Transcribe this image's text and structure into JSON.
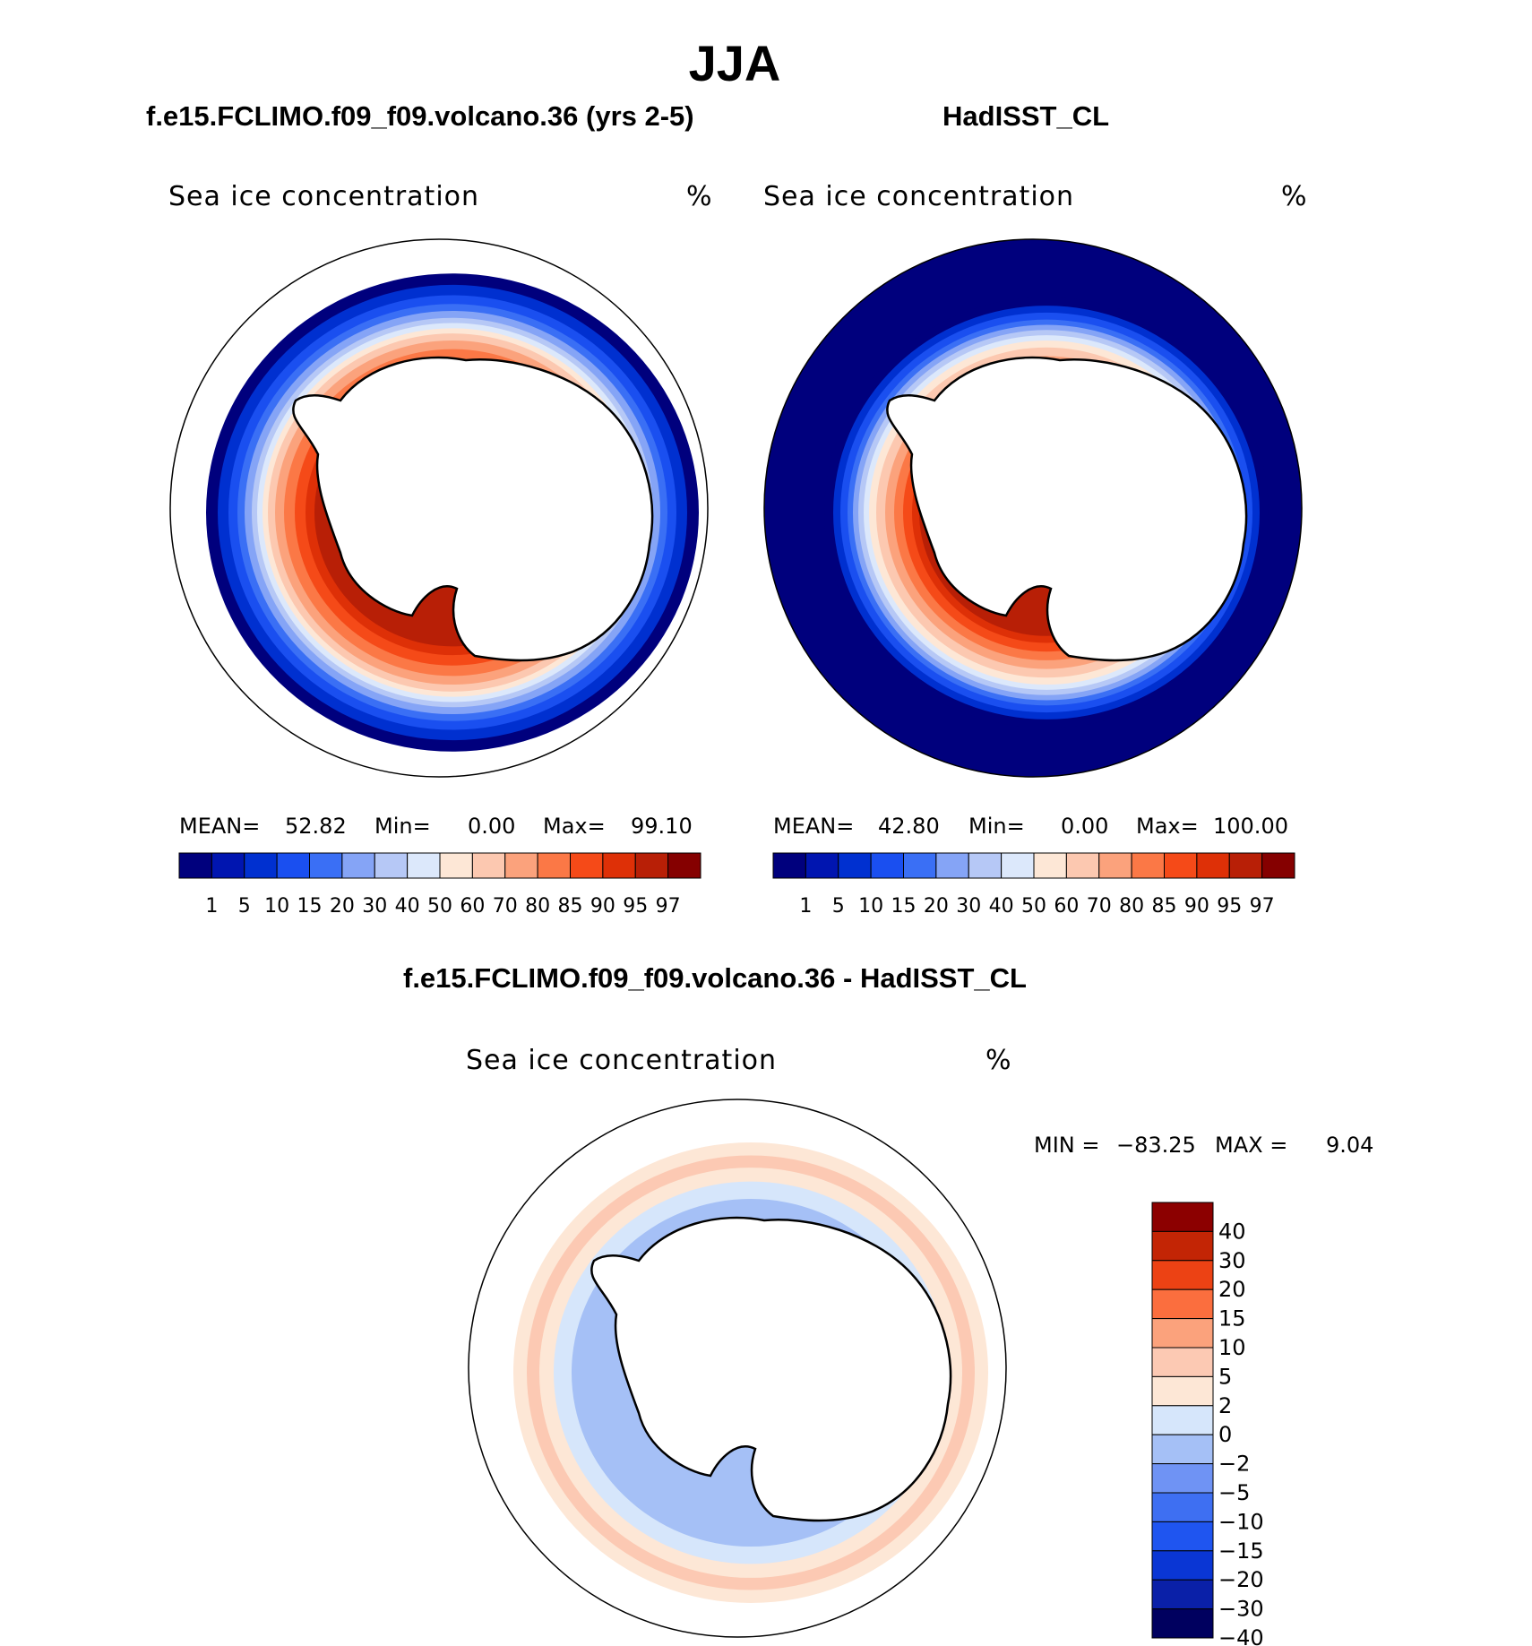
{
  "title": "JJA",
  "colors": {
    "abs_scale": [
      "#00007d",
      "#0015b0",
      "#0030d0",
      "#1a4ff0",
      "#3a6ff5",
      "#85a4f6",
      "#b6c8f6",
      "#dce8fb",
      "#fde7d6",
      "#fcc8b0",
      "#fba27c",
      "#fb7846",
      "#f54a18",
      "#de3007",
      "#b81f06",
      "#850000"
    ],
    "diff_scale": [
      "#00005f",
      "#0a20a8",
      "#0a36d4",
      "#1f55f0",
      "#3e6ff2",
      "#6f93f4",
      "#a5c0f6",
      "#d6e6fb",
      "#fde7d6",
      "#fcc9b3",
      "#fba27c",
      "#fb6e3e",
      "#ec4214",
      "#c32505",
      "#8c0000"
    ],
    "land": "#ffffff",
    "coast": "#000000"
  },
  "panels": [
    {
      "title": "f.e15.FCLIMO.f09_f09.volcano.36 (yrs 2-5)",
      "variable": "Sea ice concentration",
      "units": "%",
      "stats": {
        "mean_label": "MEAN=",
        "mean": "52.82",
        "min_label": "Min=",
        "min": "0.00",
        "max_label": "Max=",
        "max": "99.10"
      }
    },
    {
      "title": "HadISST_CL",
      "variable": "Sea ice concentration",
      "units": "%",
      "stats": {
        "mean_label": "MEAN=",
        "mean": "42.80",
        "min_label": "Min=",
        "min": "0.00",
        "max_label": "Max=",
        "max": "100.00"
      }
    }
  ],
  "abs_ticks": [
    "1",
    "5",
    "10",
    "15",
    "20",
    "30",
    "40",
    "50",
    "60",
    "70",
    "80",
    "85",
    "90",
    "95",
    "97"
  ],
  "diff": {
    "title": "f.e15.FCLIMO.f09_f09.volcano.36 - HadISST_CL",
    "variable": "Sea ice concentration",
    "units": "%",
    "min_label": "MIN =",
    "min": "−83.25",
    "max_label": "MAX =",
    "max": "9.04",
    "ticks": [
      "40",
      "30",
      "20",
      "15",
      "10",
      "5",
      "2",
      "0",
      "−2",
      "−5",
      "−10",
      "−15",
      "−20",
      "−30",
      "−40"
    ]
  }
}
